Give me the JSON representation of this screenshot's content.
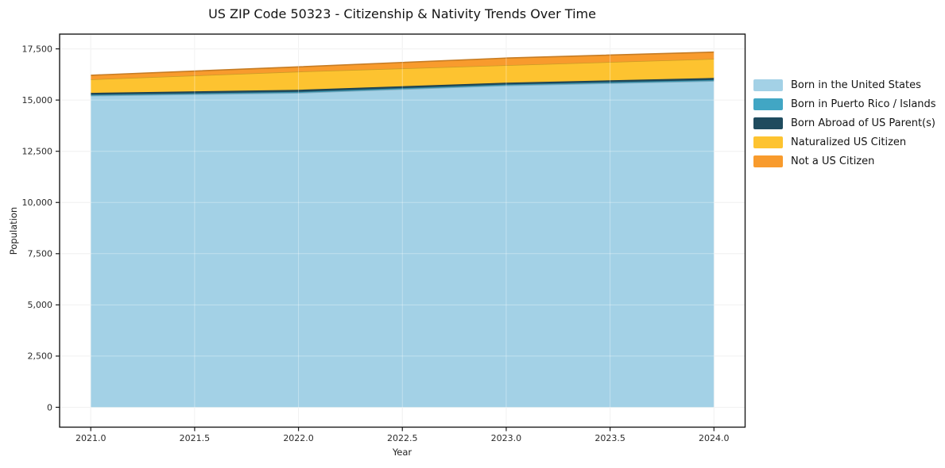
{
  "title": "US ZIP Code 50323 - Citizenship & Nativity Trends Over Time",
  "chart_data": {
    "type": "area",
    "stacked": true,
    "title": "US ZIP Code 50323 - Citizenship & Nativity Trends Over Time",
    "xlabel": "Year",
    "ylabel": "Population",
    "x": [
      2021,
      2022,
      2023,
      2024
    ],
    "series": [
      {
        "name": "Born in the United States",
        "color": "#a3d1e6",
        "values": [
          15210,
          15350,
          15710,
          15930
        ]
      },
      {
        "name": "Born in Puerto Rico / Islands",
        "color": "#41a6c4",
        "values": [
          50,
          50,
          50,
          50
        ]
      },
      {
        "name": "Born Abroad of US Parent(s)",
        "color": "#1f4b5e",
        "values": [
          90,
          100,
          90,
          100
        ]
      },
      {
        "name": "Naturalized US Citizen",
        "color": "#fdc330",
        "values": [
          660,
          890,
          850,
          930
        ]
      },
      {
        "name": "Not a US Citizen",
        "color": "#f89b2d",
        "values": [
          200,
          230,
          350,
          330
        ]
      }
    ],
    "xlim": [
      2020.85,
      2024.15
    ],
    "ylim": [
      -970,
      18220
    ],
    "xticks": [
      2021.0,
      2021.5,
      2022.0,
      2022.5,
      2023.0,
      2023.5,
      2024.0
    ],
    "xtick_labels": [
      "2021.0",
      "2021.5",
      "2022.0",
      "2022.5",
      "2023.0",
      "2023.5",
      "2024.0"
    ],
    "yticks": [
      0,
      2500,
      5000,
      7500,
      10000,
      12500,
      15000,
      17500
    ],
    "ytick_labels": [
      "0",
      "2,500",
      "5,000",
      "7,500",
      "10,000",
      "12,500",
      "15,000",
      "17,500"
    ],
    "grid": true,
    "legend_position": "right-outside",
    "colors": {
      "spine": "#1a1a1a",
      "grid": "#ececec",
      "tick_text": "#2b2b2b"
    }
  }
}
